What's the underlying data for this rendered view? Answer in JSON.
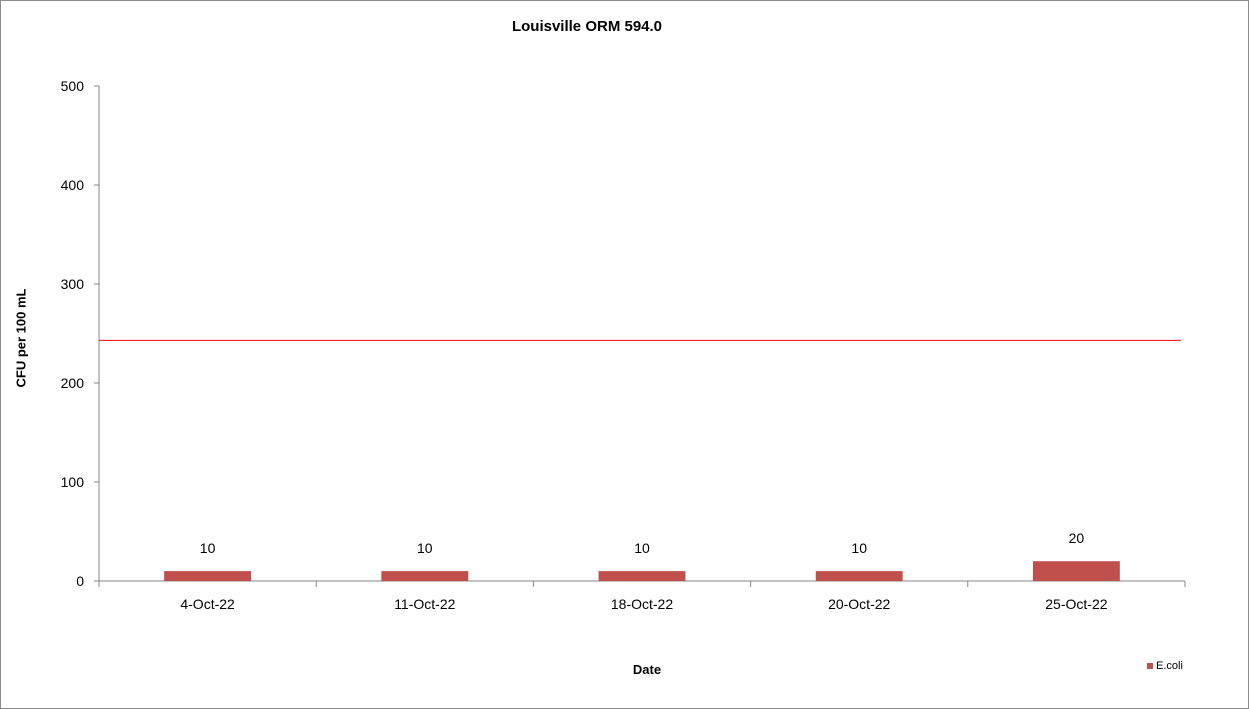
{
  "chart_data": {
    "type": "bar",
    "title": "Louisville ORM 594.0",
    "xlabel": "Date",
    "ylabel": "CFU per 100 mL",
    "categories": [
      "4-Oct-22",
      "11-Oct-22",
      "18-Oct-22",
      "20-Oct-22",
      "25-Oct-22"
    ],
    "series": [
      {
        "name": "E.coli",
        "values": [
          10,
          10,
          10,
          10,
          20
        ],
        "color": "#c0504d",
        "data_labels": [
          "10",
          "10",
          "10",
          "10",
          "20"
        ]
      }
    ],
    "reference_line": {
      "value": 243,
      "color": "#ff0000"
    },
    "ylim": [
      0,
      500
    ],
    "yticks": [
      0,
      100,
      200,
      300,
      400,
      500
    ],
    "grid": false,
    "legend_position": "bottom-right"
  }
}
